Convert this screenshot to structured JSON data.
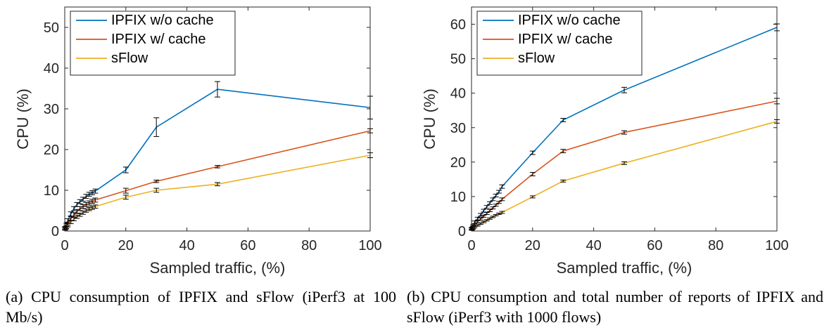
{
  "captions": {
    "a": "(a)          CPU          consumption          of          IPFIX and sFlow (iPerf3 at 100 Mb/s)",
    "b": "(b)  CPU consumption and total number of reports of IPFIX and sFlow (iPerf3 with 1000 flows)"
  },
  "chart_data": [
    {
      "type": "line",
      "title": "",
      "xlabel": "Sampled traffic, (%)",
      "ylabel": "CPU (%)",
      "xlim": [
        0,
        100
      ],
      "ylim": [
        0,
        55
      ],
      "xticks": [
        0,
        20,
        40,
        60,
        80,
        100
      ],
      "yticks": [
        0,
        10,
        20,
        30,
        40,
        50
      ],
      "grid": false,
      "legend": "top-left",
      "x": [
        0.1,
        0.5,
        1,
        2,
        3,
        4,
        5,
        6,
        7,
        8,
        9,
        10,
        20,
        30,
        50,
        100
      ],
      "series": [
        {
          "name": "IPFIX w/o cache",
          "color": "#0072BD",
          "values": [
            0.8,
            1.5,
            2.5,
            4.2,
            5.5,
            6.5,
            7.2,
            7.8,
            8.5,
            9.0,
            9.4,
            9.8,
            15.0,
            25.5,
            34.8,
            30.3
          ],
          "err": [
            0.3,
            0.4,
            0.5,
            0.5,
            0.5,
            0.5,
            0.5,
            0.5,
            0.5,
            0.5,
            0.5,
            0.5,
            0.7,
            2.3,
            1.9,
            2.8
          ]
        },
        {
          "name": "IPFIX w/ cache",
          "color": "#D95319",
          "values": [
            0.6,
            1.0,
            1.8,
            3.0,
            4.0,
            4.8,
            5.5,
            6.0,
            6.5,
            6.9,
            7.3,
            7.6,
            9.9,
            12.2,
            15.8,
            24.6
          ],
          "err": [
            0.3,
            0.4,
            0.4,
            0.5,
            0.5,
            0.5,
            0.5,
            0.5,
            0.5,
            0.5,
            0.5,
            0.5,
            0.6,
            0.3,
            0.3,
            0.5
          ]
        },
        {
          "name": "sFlow",
          "color": "#EDB120",
          "values": [
            0.5,
            0.8,
            1.4,
            2.2,
            2.9,
            3.5,
            4.0,
            4.5,
            5.0,
            5.4,
            5.7,
            6.0,
            8.3,
            10.0,
            11.5,
            18.6
          ],
          "err": [
            0.3,
            0.3,
            0.4,
            0.4,
            0.4,
            0.4,
            0.4,
            0.4,
            0.4,
            0.4,
            0.4,
            0.4,
            0.5,
            0.5,
            0.4,
            0.6
          ]
        }
      ]
    },
    {
      "type": "line",
      "title": "",
      "xlabel": "Sampled traffic, (%)",
      "ylabel": "CPU (%)",
      "xlim": [
        0,
        100
      ],
      "ylim": [
        0,
        65
      ],
      "xticks": [
        0,
        20,
        40,
        60,
        80,
        100
      ],
      "yticks": [
        0,
        10,
        20,
        30,
        40,
        50,
        60
      ],
      "grid": false,
      "legend": "top-left",
      "x": [
        0.1,
        0.5,
        1,
        2,
        3,
        4,
        5,
        6,
        7,
        8,
        9,
        10,
        20,
        30,
        50,
        100
      ],
      "series": [
        {
          "name": "IPFIX w/o cache",
          "color": "#0072BD",
          "values": [
            0.8,
            1.5,
            2.5,
            3.6,
            4.7,
            5.9,
            7.0,
            8.1,
            9.2,
            10.3,
            11.4,
            12.9,
            22.7,
            32.2,
            40.9,
            59.1
          ],
          "err": [
            0.3,
            0.3,
            0.4,
            0.4,
            0.4,
            0.4,
            0.4,
            0.4,
            0.4,
            0.4,
            0.4,
            0.5,
            0.5,
            0.5,
            0.8,
            1.0
          ]
        },
        {
          "name": "IPFIX w/ cache",
          "color": "#D95319",
          "values": [
            0.6,
            1.1,
            1.8,
            2.7,
            3.5,
            4.3,
            5.1,
            5.9,
            6.7,
            7.5,
            8.3,
            9.2,
            16.5,
            23.2,
            28.6,
            37.7
          ],
          "err": [
            0.3,
            0.3,
            0.3,
            0.3,
            0.3,
            0.3,
            0.3,
            0.3,
            0.3,
            0.3,
            0.3,
            0.4,
            0.5,
            0.5,
            0.5,
            0.8
          ]
        },
        {
          "name": "sFlow",
          "color": "#EDB120",
          "values": [
            0.4,
            0.7,
            1.1,
            1.6,
            2.1,
            2.6,
            3.1,
            3.6,
            4.1,
            4.6,
            5.0,
            5.4,
            9.9,
            14.5,
            19.7,
            31.8
          ],
          "err": [
            0.2,
            0.2,
            0.2,
            0.2,
            0.2,
            0.2,
            0.2,
            0.2,
            0.2,
            0.2,
            0.2,
            0.3,
            0.3,
            0.3,
            0.4,
            0.5
          ]
        }
      ]
    }
  ]
}
